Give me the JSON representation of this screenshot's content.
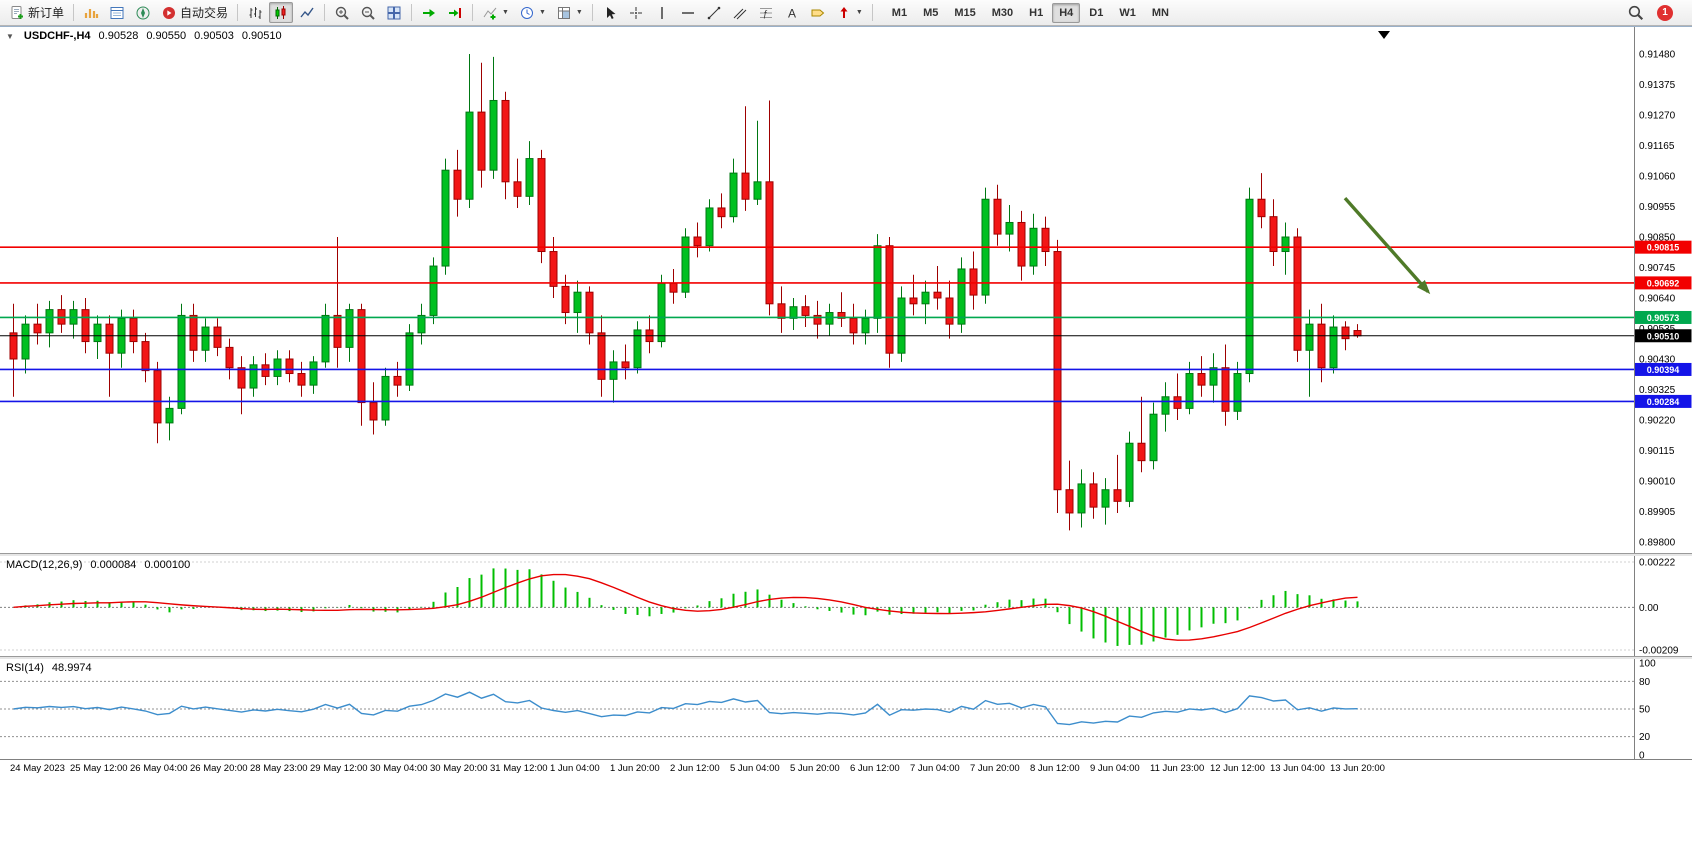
{
  "toolbar": {
    "new_order_label": "新订单",
    "auto_trading_label": "自动交易",
    "timeframes": [
      "M1",
      "M5",
      "M15",
      "M30",
      "H1",
      "H4",
      "D1",
      "W1",
      "MN"
    ],
    "active_timeframe": "H4",
    "notification_count": "1"
  },
  "chart": {
    "title": "USDCHF-,H4",
    "ohlc": {
      "open": "0.90528",
      "high": "0.90550",
      "low": "0.90503",
      "close": "0.90510"
    },
    "levels": [
      {
        "price": 0.90815,
        "label": "0.90815",
        "color": "#F20000"
      },
      {
        "price": 0.90692,
        "label": "0.90692",
        "color": "#F20000"
      },
      {
        "price": 0.90573,
        "label": "0.90573",
        "color": "#00A84F"
      },
      {
        "price": 0.9051,
        "label": "0.90510",
        "color": "#000000"
      },
      {
        "price": 0.90394,
        "label": "0.90394",
        "color": "#1414E8"
      },
      {
        "price": 0.90284,
        "label": "0.90284",
        "color": "#1414E8"
      }
    ]
  },
  "macd": {
    "label": "MACD(12,26,9)",
    "value_main": "0.000084",
    "value_signal": "0.000100",
    "axis": [
      "0.00222",
      "0.00",
      "-0.00209"
    ]
  },
  "rsi": {
    "label": "RSI(14)",
    "value": "48.9974",
    "axis": [
      "100",
      "80",
      "50",
      "20",
      "0"
    ],
    "levels": [
      80,
      50,
      20
    ]
  },
  "colors": {
    "candle_up": "#00C020",
    "candle_up_border": "#007713",
    "candle_down": "#F21616",
    "candle_down_border": "#9E0000",
    "macd_histogram": "#00BE00",
    "macd_signal": "#E80000",
    "rsi_line": "#3C8DCC",
    "arrow": "#4F7A28",
    "axis_text": "#000000"
  },
  "chart_data": [
    {
      "type": "candlestick",
      "title": "USDCHF-,H4",
      "symbol": "USDCHF",
      "timeframe": "H4",
      "ohlc_current": {
        "open": 0.90528,
        "high": 0.9055,
        "low": 0.90503,
        "close": 0.9051
      },
      "ylim": [
        0.898,
        0.9148
      ],
      "y_axis_labels": [
        "0.91480",
        "0.91375",
        "0.91270",
        "0.91165",
        "0.91060",
        "0.90955",
        "0.90850",
        "0.90745",
        "0.90640",
        "0.90535",
        "0.90430",
        "0.90325",
        "0.90220",
        "0.90115",
        "0.90010",
        "0.89905",
        "0.89800"
      ],
      "x_labels": [
        "24 May 2023",
        "25 May 12:00",
        "26 May 04:00",
        "26 May 20:00",
        "28 May 23:00",
        "29 May 12:00",
        "30 May 04:00",
        "30 May 20:00",
        "31 May 12:00",
        "1 Jun 04:00",
        "1 Jun 20:00",
        "2 Jun 12:00",
        "5 Jun 04:00",
        "5 Jun 20:00",
        "6 Jun 12:00",
        "7 Jun 04:00",
        "7 Jun 20:00",
        "8 Jun 12:00",
        "9 Jun 04:00",
        "11 Jun 23:00",
        "12 Jun 12:00",
        "13 Jun 04:00",
        "13 Jun 20:00"
      ],
      "candles": [
        [
          0.9052,
          0.9062,
          0.903,
          0.9043
        ],
        [
          0.9043,
          0.9058,
          0.9038,
          0.9055
        ],
        [
          0.9055,
          0.9062,
          0.9048,
          0.9052
        ],
        [
          0.9052,
          0.9063,
          0.9047,
          0.906
        ],
        [
          0.906,
          0.9065,
          0.9052,
          0.9055
        ],
        [
          0.9055,
          0.9063,
          0.905,
          0.906
        ],
        [
          0.906,
          0.9064,
          0.9045,
          0.9049
        ],
        [
          0.9049,
          0.9058,
          0.9043,
          0.9055
        ],
        [
          0.9055,
          0.9058,
          0.903,
          0.9045
        ],
        [
          0.9045,
          0.906,
          0.904,
          0.9057
        ],
        [
          0.9057,
          0.906,
          0.9045,
          0.9049
        ],
        [
          0.9049,
          0.9052,
          0.9035,
          0.9039
        ],
        [
          0.9039,
          0.9042,
          0.9014,
          0.9021
        ],
        [
          0.9021,
          0.903,
          0.9015,
          0.9026
        ],
        [
          0.9026,
          0.9062,
          0.9024,
          0.9058
        ],
        [
          0.9058,
          0.9062,
          0.9042,
          0.9046
        ],
        [
          0.9046,
          0.9057,
          0.9042,
          0.9054
        ],
        [
          0.9054,
          0.9057,
          0.9044,
          0.9047
        ],
        [
          0.9047,
          0.905,
          0.9036,
          0.904
        ],
        [
          0.904,
          0.9044,
          0.9024,
          0.9033
        ],
        [
          0.9033,
          0.9044,
          0.903,
          0.9041
        ],
        [
          0.9041,
          0.9045,
          0.9034,
          0.9037
        ],
        [
          0.9037,
          0.9046,
          0.9034,
          0.9043
        ],
        [
          0.9043,
          0.9046,
          0.9035,
          0.9038
        ],
        [
          0.9038,
          0.9042,
          0.903,
          0.9034
        ],
        [
          0.9034,
          0.9044,
          0.9031,
          0.9042
        ],
        [
          0.9042,
          0.9062,
          0.904,
          0.9058
        ],
        [
          0.9058,
          0.9085,
          0.904,
          0.9047
        ],
        [
          0.9047,
          0.9062,
          0.9042,
          0.906
        ],
        [
          0.906,
          0.9062,
          0.902,
          0.9028
        ],
        [
          0.9028,
          0.9035,
          0.9017,
          0.9022
        ],
        [
          0.9022,
          0.904,
          0.902,
          0.9037
        ],
        [
          0.9037,
          0.9042,
          0.903,
          0.9034
        ],
        [
          0.9034,
          0.9055,
          0.9032,
          0.9052
        ],
        [
          0.9052,
          0.9062,
          0.9048,
          0.9058
        ],
        [
          0.9058,
          0.9078,
          0.9055,
          0.9075
        ],
        [
          0.9075,
          0.9112,
          0.9072,
          0.9108
        ],
        [
          0.9108,
          0.9115,
          0.9092,
          0.9098
        ],
        [
          0.9098,
          0.9148,
          0.9095,
          0.9128
        ],
        [
          0.9128,
          0.9145,
          0.9102,
          0.9108
        ],
        [
          0.9108,
          0.9147,
          0.9105,
          0.9132
        ],
        [
          0.9132,
          0.9135,
          0.9098,
          0.9104
        ],
        [
          0.9104,
          0.9112,
          0.9095,
          0.9099
        ],
        [
          0.9099,
          0.9118,
          0.9096,
          0.9112
        ],
        [
          0.9112,
          0.9115,
          0.9076,
          0.908
        ],
        [
          0.908,
          0.9085,
          0.9064,
          0.9068
        ],
        [
          0.9068,
          0.9072,
          0.9055,
          0.9059
        ],
        [
          0.9059,
          0.907,
          0.9052,
          0.9066
        ],
        [
          0.9066,
          0.9068,
          0.9048,
          0.9052
        ],
        [
          0.9052,
          0.9058,
          0.903,
          0.9036
        ],
        [
          0.9036,
          0.9046,
          0.9028,
          0.9042
        ],
        [
          0.9042,
          0.9048,
          0.9036,
          0.904
        ],
        [
          0.904,
          0.9056,
          0.9038,
          0.9053
        ],
        [
          0.9053,
          0.9058,
          0.9045,
          0.9049
        ],
        [
          0.9049,
          0.9072,
          0.9047,
          0.9069
        ],
        [
          0.9069,
          0.9074,
          0.9062,
          0.9066
        ],
        [
          0.9066,
          0.9088,
          0.9064,
          0.9085
        ],
        [
          0.9085,
          0.909,
          0.9078,
          0.9082
        ],
        [
          0.9082,
          0.9098,
          0.908,
          0.9095
        ],
        [
          0.9095,
          0.91,
          0.9088,
          0.9092
        ],
        [
          0.9092,
          0.9112,
          0.909,
          0.9107
        ],
        [
          0.9107,
          0.913,
          0.9094,
          0.9098
        ],
        [
          0.9098,
          0.9125,
          0.9096,
          0.9104
        ],
        [
          0.9104,
          0.9132,
          0.9058,
          0.9062
        ],
        [
          0.9062,
          0.9068,
          0.9052,
          0.9057
        ],
        [
          0.9057,
          0.9064,
          0.9053,
          0.9061
        ],
        [
          0.9061,
          0.9065,
          0.9054,
          0.9058
        ],
        [
          0.9058,
          0.9063,
          0.905,
          0.9055
        ],
        [
          0.9055,
          0.9062,
          0.9051,
          0.9059
        ],
        [
          0.9059,
          0.9066,
          0.9054,
          0.9057
        ],
        [
          0.9057,
          0.9062,
          0.9048,
          0.9052
        ],
        [
          0.9052,
          0.906,
          0.9048,
          0.9057
        ],
        [
          0.9057,
          0.9086,
          0.9052,
          0.9082
        ],
        [
          0.9082,
          0.9085,
          0.904,
          0.9045
        ],
        [
          0.9045,
          0.9068,
          0.9042,
          0.9064
        ],
        [
          0.9064,
          0.9072,
          0.9058,
          0.9062
        ],
        [
          0.9062,
          0.907,
          0.9055,
          0.9066
        ],
        [
          0.9066,
          0.9075,
          0.906,
          0.9064
        ],
        [
          0.9064,
          0.907,
          0.905,
          0.9055
        ],
        [
          0.9055,
          0.9078,
          0.9052,
          0.9074
        ],
        [
          0.9074,
          0.908,
          0.906,
          0.9065
        ],
        [
          0.9065,
          0.9102,
          0.9062,
          0.9098
        ],
        [
          0.9098,
          0.9103,
          0.9082,
          0.9086
        ],
        [
          0.9086,
          0.9096,
          0.908,
          0.909
        ],
        [
          0.909,
          0.9094,
          0.907,
          0.9075
        ],
        [
          0.9075,
          0.9093,
          0.9072,
          0.9088
        ],
        [
          0.9088,
          0.9092,
          0.9075,
          0.908
        ],
        [
          0.908,
          0.9084,
          0.899,
          0.8998
        ],
        [
          0.8998,
          0.9008,
          0.8984,
          0.899
        ],
        [
          0.899,
          0.9005,
          0.8985,
          0.9
        ],
        [
          0.9,
          0.9004,
          0.8988,
          0.8992
        ],
        [
          0.8992,
          0.9002,
          0.8986,
          0.8998
        ],
        [
          0.8998,
          0.901,
          0.899,
          0.8994
        ],
        [
          0.8994,
          0.9018,
          0.8992,
          0.9014
        ],
        [
          0.9014,
          0.903,
          0.9004,
          0.9008
        ],
        [
          0.9008,
          0.9028,
          0.9005,
          0.9024
        ],
        [
          0.9024,
          0.9035,
          0.9018,
          0.903
        ],
        [
          0.903,
          0.9038,
          0.9022,
          0.9026
        ],
        [
          0.9026,
          0.9042,
          0.9024,
          0.9038
        ],
        [
          0.9038,
          0.9044,
          0.903,
          0.9034
        ],
        [
          0.9034,
          0.9045,
          0.9028,
          0.904
        ],
        [
          0.904,
          0.9048,
          0.902,
          0.9025
        ],
        [
          0.9025,
          0.9042,
          0.9022,
          0.9038
        ],
        [
          0.9038,
          0.9102,
          0.9035,
          0.9098
        ],
        [
          0.9098,
          0.9107,
          0.9088,
          0.9092
        ],
        [
          0.9092,
          0.9098,
          0.9075,
          0.908
        ],
        [
          0.908,
          0.909,
          0.9072,
          0.9085
        ],
        [
          0.9085,
          0.9088,
          0.9042,
          0.9046
        ],
        [
          0.9046,
          0.906,
          0.903,
          0.9055
        ],
        [
          0.9055,
          0.9062,
          0.9035,
          0.904
        ],
        [
          0.904,
          0.9058,
          0.9038,
          0.9054
        ],
        [
          0.9054,
          0.9056,
          0.9046,
          0.905
        ],
        [
          0.90528,
          0.9055,
          0.90503,
          0.9051
        ]
      ],
      "horizontal_levels": [
        0.90815,
        0.90692,
        0.90573,
        0.9051,
        0.90394,
        0.90284
      ]
    },
    {
      "type": "bar",
      "name": "MACD(12,26,9)",
      "params": {
        "fast": 12,
        "slow": 26,
        "signal": 9
      },
      "computed_from": "candlestick closes",
      "current": {
        "macd": 8.4e-05,
        "signal": 0.0001
      },
      "ylim": [
        -0.00209,
        0.00222
      ]
    },
    {
      "type": "line",
      "name": "RSI(14)",
      "params": {
        "period": 14
      },
      "computed_from": "candlestick closes",
      "current": 48.9974,
      "ylim": [
        0,
        100
      ],
      "levels": [
        80,
        50,
        20
      ]
    }
  ]
}
